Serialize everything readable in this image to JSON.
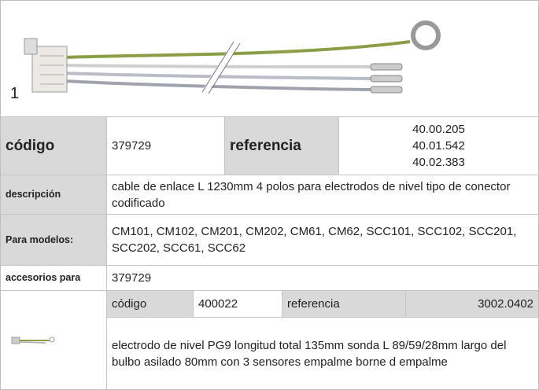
{
  "figure": {
    "label": "1"
  },
  "table": {
    "codigo": {
      "label": "código",
      "value": "379729"
    },
    "referencia": {
      "label": "referencia",
      "values": [
        "40.00.205",
        "40.01.542",
        "40.02.383"
      ]
    },
    "descripcion": {
      "label": "descripción",
      "value": "cable de enlace  L 1230mm 4 polos para electrodos de nivel tipo de conector codificado"
    },
    "modelos": {
      "label": "Para modelos:",
      "value": "CM101, CM102, CM201, CM202, CM61, CM62, SCC101, SCC102, SCC201, SCC202, SCC61, SCC62"
    },
    "accesorios": {
      "label": "accesorios para",
      "value": "379729"
    },
    "accessory": {
      "codigo_label": "código",
      "codigo": "400022",
      "referencia_label": "referencia",
      "referencia": "3002.0402",
      "description": "electrodo de nivel  PG9 longitud total 135mm sonda L 89/59/28mm largo del bulbo asilado 80mm con 3 sensores empalme borne d empalme"
    }
  }
}
